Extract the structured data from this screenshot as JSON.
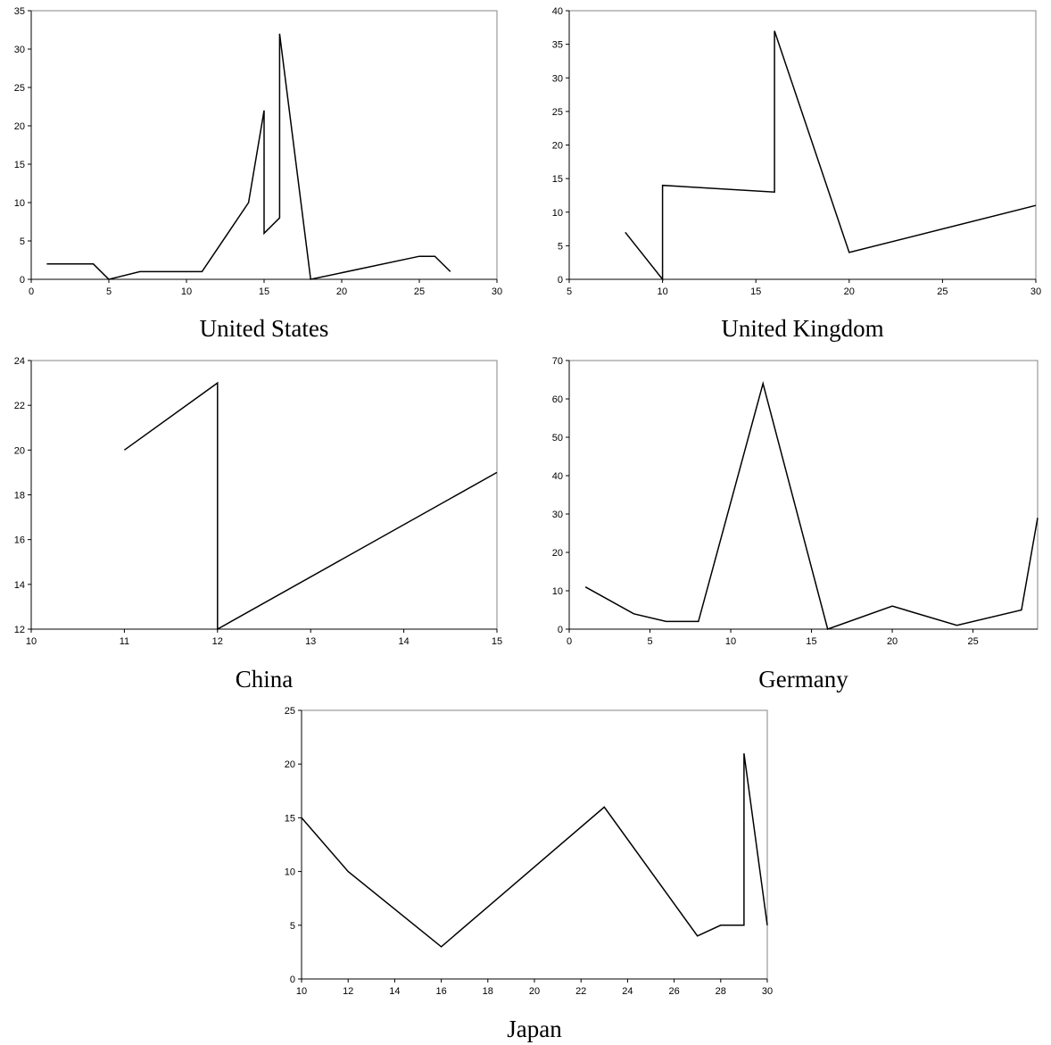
{
  "chart_data": [
    {
      "type": "line",
      "title": "United States",
      "xlim": [
        0,
        30
      ],
      "ylim": [
        0,
        35
      ],
      "xticks": [
        "0",
        "5",
        "10",
        "15",
        "20",
        "25",
        "30"
      ],
      "yticks": [
        "0",
        "5",
        "10",
        "15",
        "20",
        "25",
        "30",
        "35"
      ],
      "grid": false,
      "series": [
        {
          "x": [
            1,
            4,
            5,
            7,
            11,
            14,
            15,
            15,
            16,
            16,
            18,
            25,
            26,
            27
          ],
          "y": [
            2,
            2,
            0,
            1,
            1,
            10,
            22,
            6,
            8,
            32,
            0,
            3,
            3,
            1
          ]
        }
      ]
    },
    {
      "type": "line",
      "title": "United Kingdom",
      "xlim": [
        5,
        30
      ],
      "ylim": [
        0,
        40
      ],
      "xticks": [
        "5",
        "10",
        "15",
        "20",
        "25",
        "30"
      ],
      "yticks": [
        "0",
        "5",
        "10",
        "15",
        "20",
        "25",
        "30",
        "35",
        "40"
      ],
      "grid": false,
      "series": [
        {
          "x": [
            8,
            10,
            10,
            16,
            16,
            20,
            30
          ],
          "y": [
            7,
            0,
            14,
            13,
            37,
            4,
            11
          ]
        }
      ]
    },
    {
      "type": "line",
      "title": "China",
      "xlim": [
        10,
        15
      ],
      "ylim": [
        12,
        24
      ],
      "xticks": [
        "10",
        "11",
        "12",
        "13",
        "14",
        "15"
      ],
      "yticks": [
        "12",
        "14",
        "16",
        "18",
        "20",
        "22",
        "24"
      ],
      "grid": false,
      "series": [
        {
          "x": [
            11,
            12,
            12,
            15
          ],
          "y": [
            20,
            23,
            12,
            19
          ]
        }
      ]
    },
    {
      "type": "line",
      "title": "Germany",
      "xlim": [
        0,
        29
      ],
      "ylim": [
        0,
        70
      ],
      "xticks": [
        "0",
        "5",
        "10",
        "15",
        "20",
        "25"
      ],
      "yticks": [
        "0",
        "10",
        "20",
        "30",
        "40",
        "50",
        "60",
        "70"
      ],
      "grid": false,
      "series": [
        {
          "x": [
            1,
            4,
            6,
            8,
            12,
            16,
            20,
            24,
            28,
            29
          ],
          "y": [
            11,
            4,
            2,
            2,
            64,
            0,
            6,
            1,
            5,
            29
          ]
        }
      ]
    },
    {
      "type": "line",
      "title": "Japan",
      "xlim": [
        10,
        30
      ],
      "ylim": [
        0,
        25
      ],
      "xticks": [
        "10",
        "12",
        "14",
        "16",
        "18",
        "20",
        "22",
        "24",
        "26",
        "28",
        "30"
      ],
      "yticks": [
        "0",
        "5",
        "10",
        "15",
        "20",
        "25"
      ],
      "grid": false,
      "series": [
        {
          "x": [
            10,
            12,
            16,
            23,
            27,
            28,
            29,
            29,
            30
          ],
          "y": [
            15,
            10,
            3,
            16,
            4,
            5,
            5,
            21,
            5
          ]
        }
      ]
    }
  ]
}
